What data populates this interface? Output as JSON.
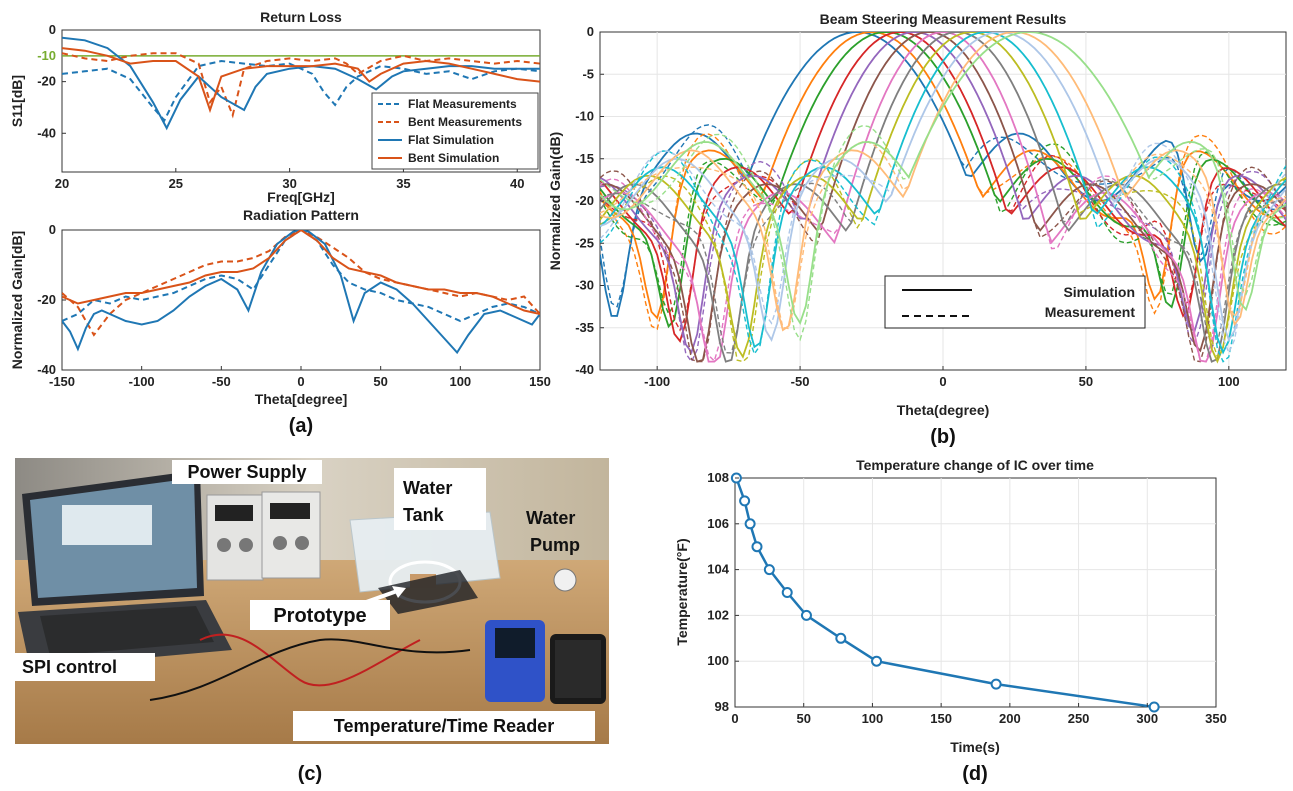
{
  "colors": {
    "flat": "#1f77b4",
    "bent": "#d95319",
    "ref": "#77ac30",
    "grid": "#e6e6e6",
    "d_line": "#1f77b4",
    "beam_palette": [
      "#1f77b4",
      "#ff7f0e",
      "#2ca02c",
      "#d62728",
      "#9467bd",
      "#8c564b",
      "#e377c2",
      "#7f7f7f",
      "#bcbd22",
      "#17becf",
      "#aec7e8",
      "#ffbb78",
      "#98df8a",
      "#ff9896",
      "#c5b0d5"
    ]
  },
  "chart_data": [
    {
      "id": "return-loss",
      "type": "line",
      "title": "Return Loss",
      "xlabel": "Freq[GHz]",
      "ylabel": "S11[dB]",
      "xlim": [
        20,
        41
      ],
      "ylim": [
        -55,
        0
      ],
      "xticks": [
        20,
        25,
        30,
        35,
        40
      ],
      "yticks": [
        0,
        -20,
        -40
      ],
      "ref_line": {
        "y": -10,
        "label": "-10"
      },
      "legend": "bottom-right",
      "series": [
        {
          "name": "Flat Measurements",
          "style": "dashed",
          "color": "flat",
          "x": [
            20,
            21,
            22,
            23,
            24,
            24.5,
            25,
            26,
            27,
            28,
            29,
            30,
            31,
            31.5,
            32,
            32.5,
            33,
            34,
            35,
            36,
            37,
            38,
            39,
            40,
            41
          ],
          "y": [
            -17,
            -16,
            -15,
            -19,
            -30,
            -35,
            -26,
            -14,
            -12,
            -13,
            -14,
            -13,
            -17,
            -24,
            -29,
            -22,
            -18,
            -14,
            -15,
            -17,
            -16,
            -19,
            -16,
            -15,
            -16
          ]
        },
        {
          "name": "Bent Measurements",
          "style": "dashed",
          "color": "bent",
          "x": [
            20,
            21,
            22,
            23,
            24,
            25,
            26,
            26.5,
            27,
            27.5,
            28,
            29,
            30,
            31,
            32,
            32.5,
            33,
            34,
            35,
            36,
            37,
            38,
            39,
            40,
            41
          ],
          "y": [
            -9,
            -11,
            -12,
            -10,
            -9,
            -9,
            -13,
            -28,
            -22,
            -33,
            -15,
            -12,
            -11,
            -12,
            -11,
            -13,
            -17,
            -12,
            -10,
            -12,
            -11,
            -12,
            -13,
            -12,
            -13
          ]
        },
        {
          "name": "Flat Simulation",
          "style": "solid",
          "color": "flat",
          "x": [
            20,
            21,
            22,
            23,
            24,
            24.6,
            25.2,
            26,
            27,
            28,
            28.5,
            29,
            30,
            31,
            32,
            33,
            33.8,
            34.5,
            35,
            36,
            37,
            38,
            39,
            40,
            41
          ],
          "y": [
            -3,
            -4,
            -7,
            -14,
            -28,
            -38,
            -27,
            -18,
            -26,
            -31,
            -22,
            -17,
            -15,
            -14,
            -15,
            -19,
            -23,
            -18,
            -16,
            -15,
            -14,
            -14,
            -15,
            -15,
            -15
          ]
        },
        {
          "name": "Bent Simulation",
          "style": "solid",
          "color": "bent",
          "x": [
            20,
            21,
            22,
            23,
            24,
            25,
            26,
            26.5,
            27,
            28,
            29,
            30,
            31,
            32,
            33,
            33.5,
            34,
            35,
            36,
            37,
            38,
            39,
            40,
            41
          ],
          "y": [
            -7,
            -8,
            -10,
            -13,
            -12,
            -12,
            -18,
            -31,
            -18,
            -15,
            -14,
            -14,
            -14,
            -13,
            -15,
            -20,
            -17,
            -13,
            -12,
            -13,
            -15,
            -17,
            -19,
            -20
          ]
        }
      ]
    },
    {
      "id": "radiation-pattern",
      "type": "line",
      "title": "Radiation Pattern",
      "xlabel": "Theta[degree]",
      "ylabel": "Normalized Gain[dB]",
      "xlim": [
        -150,
        150
      ],
      "ylim": [
        -40,
        0
      ],
      "xticks": [
        -150,
        -100,
        -50,
        0,
        50,
        100,
        150
      ],
      "yticks": [
        0,
        -20,
        -40
      ],
      "series": [
        {
          "name": "Flat Measurements",
          "style": "dashed",
          "color": "flat",
          "x": [
            -150,
            -140,
            -130,
            -120,
            -110,
            -100,
            -90,
            -80,
            -70,
            -60,
            -50,
            -40,
            -30,
            -20,
            -10,
            0,
            10,
            20,
            30,
            40,
            50,
            60,
            70,
            80,
            90,
            100,
            110,
            120,
            130,
            140,
            150
          ],
          "y": [
            -26,
            -24,
            -20,
            -21,
            -19,
            -20,
            -19,
            -18,
            -16,
            -14,
            -13,
            -14,
            -17,
            -10,
            -3,
            0,
            -3,
            -10,
            -15,
            -17,
            -18,
            -20,
            -21,
            -22,
            -24,
            -26,
            -24,
            -22,
            -21,
            -22,
            -24
          ]
        },
        {
          "name": "Bent Measurements",
          "style": "dashed",
          "color": "bent",
          "x": [
            -150,
            -140,
            -130,
            -120,
            -110,
            -100,
            -90,
            -80,
            -70,
            -60,
            -50,
            -40,
            -30,
            -20,
            -10,
            0,
            10,
            20,
            30,
            40,
            50,
            60,
            70,
            80,
            90,
            100,
            110,
            120,
            130,
            140,
            150
          ],
          "y": [
            -18,
            -22,
            -30,
            -24,
            -20,
            -18,
            -16,
            -14,
            -12,
            -10,
            -9,
            -9,
            -8,
            -6,
            -2,
            0,
            -2,
            -5,
            -8,
            -12,
            -14,
            -15,
            -16,
            -17,
            -18,
            -19,
            -18,
            -19,
            -20,
            -19,
            -24
          ]
        },
        {
          "name": "Flat Simulation",
          "style": "solid",
          "color": "flat",
          "x": [
            -150,
            -145,
            -140,
            -135,
            -130,
            -125,
            -120,
            -110,
            -100,
            -90,
            -80,
            -70,
            -60,
            -50,
            -40,
            -33,
            -25,
            -15,
            -5,
            0,
            5,
            15,
            25,
            33,
            40,
            50,
            60,
            70,
            80,
            90,
            98,
            105,
            115,
            125,
            135,
            145,
            150
          ],
          "y": [
            -26,
            -29,
            -34,
            -28,
            -24,
            -23,
            -24,
            -26,
            -27,
            -26,
            -23,
            -19,
            -16,
            -14,
            -17,
            -23,
            -12,
            -4,
            -0.5,
            0,
            -0.5,
            -4,
            -13,
            -26,
            -18,
            -15,
            -17,
            -21,
            -26,
            -31,
            -35,
            -30,
            -24,
            -23,
            -25,
            -27,
            -24
          ]
        },
        {
          "name": "Bent Simulation",
          "style": "solid",
          "color": "bent",
          "x": [
            -150,
            -140,
            -130,
            -120,
            -110,
            -100,
            -90,
            -80,
            -70,
            -60,
            -50,
            -40,
            -30,
            -20,
            -10,
            0,
            10,
            20,
            30,
            40,
            50,
            60,
            70,
            80,
            90,
            100,
            110,
            120,
            130,
            140,
            150
          ],
          "y": [
            -19,
            -21,
            -20,
            -19,
            -18,
            -18,
            -17,
            -16,
            -15,
            -13,
            -12,
            -12,
            -11,
            -8,
            -3,
            0,
            -3,
            -8,
            -11,
            -12,
            -13,
            -15,
            -16,
            -17,
            -17,
            -18,
            -18,
            -19,
            -21,
            -23,
            -24
          ]
        }
      ]
    },
    {
      "id": "beam-steering",
      "type": "line",
      "title": "Beam Steering Measurement Results",
      "xlabel": "Theta(degree)",
      "ylabel": "Normalized Gain(dB)",
      "xlim": [
        -120,
        120
      ],
      "ylim": [
        -40,
        0
      ],
      "xticks": [
        -100,
        -50,
        0,
        50,
        100
      ],
      "yticks": [
        0,
        -5,
        -10,
        -15,
        -20,
        -25,
        -30,
        -35,
        -40
      ],
      "legend": "bottom-right",
      "legend_entries": [
        {
          "label": "Simulation",
          "style": "solid"
        },
        {
          "label": "Measurement",
          "style": "dashed"
        }
      ],
      "beams": [
        {
          "peak": -30,
          "width": 32,
          "lobe": -16,
          "null_left": -115,
          "null_right": 90
        },
        {
          "peak": -25,
          "width": 30,
          "lobe": -18,
          "null_left": -100,
          "null_right": 75
        },
        {
          "peak": -20,
          "width": 30,
          "lobe": -19,
          "null_left": -95,
          "null_right": 80
        },
        {
          "peak": -15,
          "width": 28,
          "lobe": -20,
          "null_left": -92,
          "null_right": 85
        },
        {
          "peak": -10,
          "width": 28,
          "lobe": -21,
          "null_left": -88,
          "null_right": 88
        },
        {
          "peak": -5,
          "width": 27,
          "lobe": -22,
          "null_left": -85,
          "null_right": 90
        },
        {
          "peak": 0,
          "width": 26,
          "lobe": -23,
          "null_left": -80,
          "null_right": 92
        },
        {
          "peak": 5,
          "width": 27,
          "lobe": -22,
          "null_left": -75,
          "null_right": 95
        },
        {
          "peak": 10,
          "width": 28,
          "lobe": -21,
          "null_left": -70,
          "null_right": 96
        },
        {
          "peak": 15,
          "width": 28,
          "lobe": -20,
          "null_left": -65,
          "null_right": 98
        },
        {
          "peak": 20,
          "width": 30,
          "lobe": -19,
          "null_left": -60,
          "null_right": 100
        },
        {
          "peak": 25,
          "width": 30,
          "lobe": -18,
          "null_left": -55,
          "null_right": 102
        },
        {
          "peak": 30,
          "width": 35,
          "lobe": -17,
          "null_left": -50,
          "null_right": 105
        }
      ]
    },
    {
      "id": "temperature",
      "type": "line",
      "title": "Temperature change of IC over time",
      "xlabel": "Time(s)",
      "ylabel": "Temperature(°F)",
      "xlim": [
        0,
        350
      ],
      "ylim": [
        98,
        108
      ],
      "xticks": [
        0,
        50,
        100,
        150,
        200,
        250,
        300,
        350
      ],
      "yticks": [
        98,
        100,
        102,
        104,
        106,
        108
      ],
      "grid": true,
      "series": [
        {
          "name": "",
          "color": "d_line",
          "marker": "circle",
          "x": [
            1,
            7,
            11,
            16,
            25,
            38,
            52,
            77,
            103,
            190,
            305
          ],
          "y": [
            108,
            107,
            106,
            105,
            104,
            103,
            102,
            101,
            100,
            99,
            98
          ]
        }
      ]
    }
  ],
  "panels": {
    "a_caption": "(a)",
    "b_caption": "(b)",
    "c_caption": "(c)",
    "d_caption": "(d)"
  },
  "photo": {
    "labels": {
      "power_supply": "Power Supply",
      "water_tank_1": "Water",
      "water_tank_2": "Tank",
      "water_pump_1": "Water",
      "water_pump_2": "Pump",
      "prototype": "Prototype",
      "spi": "SPI control",
      "reader": "Temperature/Time Reader"
    }
  }
}
